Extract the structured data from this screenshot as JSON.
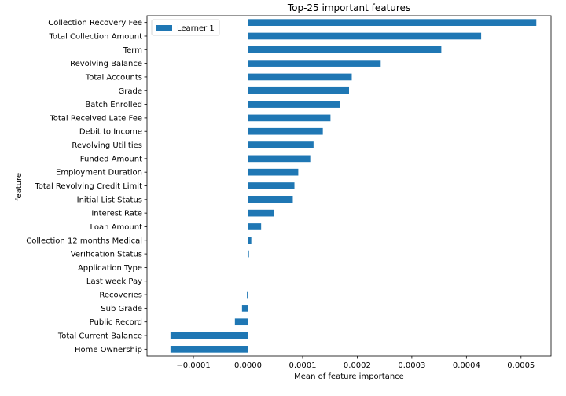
{
  "chart_data": {
    "type": "bar",
    "orientation": "horizontal",
    "title": "Top-25 important features",
    "xlabel": "Mean of feature importance",
    "ylabel": "feature",
    "xlim": [
      -0.000185,
      0.000555
    ],
    "x_ticks": [
      -0.0001,
      0.0,
      0.0001,
      0.0002,
      0.0003,
      0.0004,
      0.0005
    ],
    "x_tick_labels": [
      "−0.0001",
      "0.0000",
      "0.0001",
      "0.0002",
      "0.0003",
      "0.0004",
      "0.0005"
    ],
    "grid": false,
    "legend_position": "top-left",
    "color": "#1f77b4",
    "categories": [
      "Collection Recovery Fee",
      "Total Collection Amount",
      "Term",
      "Revolving Balance",
      "Total Accounts",
      "Grade",
      "Batch Enrolled",
      "Total Received Late Fee",
      "Debit to Income",
      "Revolving Utilities",
      "Funded Amount",
      "Employment Duration",
      "Total Revolving Credit Limit",
      "Initial List Status",
      "Interest Rate",
      "Loan Amount",
      "Collection 12 months Medical",
      "Verification Status",
      "Application Type",
      "Last week Pay",
      "Recoveries",
      "Sub Grade",
      "Public Record",
      "Total Current Balance",
      "Home Ownership"
    ],
    "series": [
      {
        "name": "Learner 1",
        "values": [
          0.000528,
          0.000427,
          0.000354,
          0.000243,
          0.00019,
          0.000185,
          0.000168,
          0.000151,
          0.000137,
          0.00012,
          0.000114,
          9.2e-05,
          8.5e-05,
          8.2e-05,
          4.7e-05,
          2.4e-05,
          6e-06,
          1e-06,
          0.0,
          0.0,
          -2e-06,
          -1.1e-05,
          -2.4e-05,
          -0.000142,
          -0.000142
        ]
      }
    ]
  }
}
